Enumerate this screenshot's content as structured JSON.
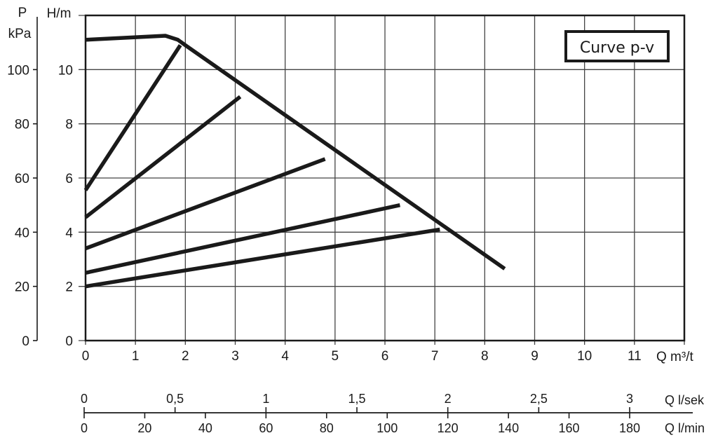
{
  "chart_data": {
    "type": "line",
    "legend": "Curve p-v",
    "legend_placement": "top-right",
    "grid": true,
    "xlabel": "Q m³/t",
    "ylabel": "H/m",
    "ylabel_secondary": [
      "P",
      "kPa"
    ],
    "xlim": [
      0,
      12
    ],
    "ylim": [
      0,
      12
    ],
    "xticks": [
      "0",
      "1",
      "2",
      "3",
      "4",
      "5",
      "6",
      "7",
      "8",
      "9",
      "10",
      "11"
    ],
    "yticks": [
      "0",
      "2",
      "4",
      "6",
      "8",
      "10"
    ],
    "yticks_secondary": [
      "0",
      "20",
      "40",
      "60",
      "80",
      "100"
    ],
    "series": [
      {
        "points": [
          [
            0,
            11.1
          ],
          [
            1.6,
            11.25
          ],
          [
            1.85,
            11.1
          ],
          [
            2.0,
            10.9
          ],
          [
            8.4,
            2.65
          ]
        ]
      },
      {
        "points": [
          [
            0,
            5.55
          ],
          [
            1.9,
            10.9
          ]
        ]
      },
      {
        "points": [
          [
            0,
            4.55
          ],
          [
            3.1,
            9.0
          ]
        ]
      },
      {
        "points": [
          [
            0,
            3.4
          ],
          [
            4.8,
            6.7
          ]
        ]
      },
      {
        "points": [
          [
            0,
            2.5
          ],
          [
            6.3,
            5.0
          ]
        ]
      },
      {
        "points": [
          [
            0,
            2.0
          ],
          [
            7.1,
            4.1
          ]
        ]
      }
    ],
    "secondary_axes": [
      {
        "label": "Q l/sek",
        "ticks": [
          "0",
          "0,5",
          "1",
          "1,5",
          "2",
          "2,5",
          "3"
        ],
        "values": [
          0,
          0.5,
          1,
          1.5,
          2,
          2.5,
          3
        ]
      },
      {
        "label": "Q l/min",
        "ticks": [
          "0",
          "20",
          "40",
          "60",
          "80",
          "100",
          "120",
          "140",
          "160",
          "180"
        ],
        "values": [
          0,
          20,
          40,
          60,
          80,
          100,
          120,
          140,
          160,
          180
        ]
      }
    ]
  }
}
